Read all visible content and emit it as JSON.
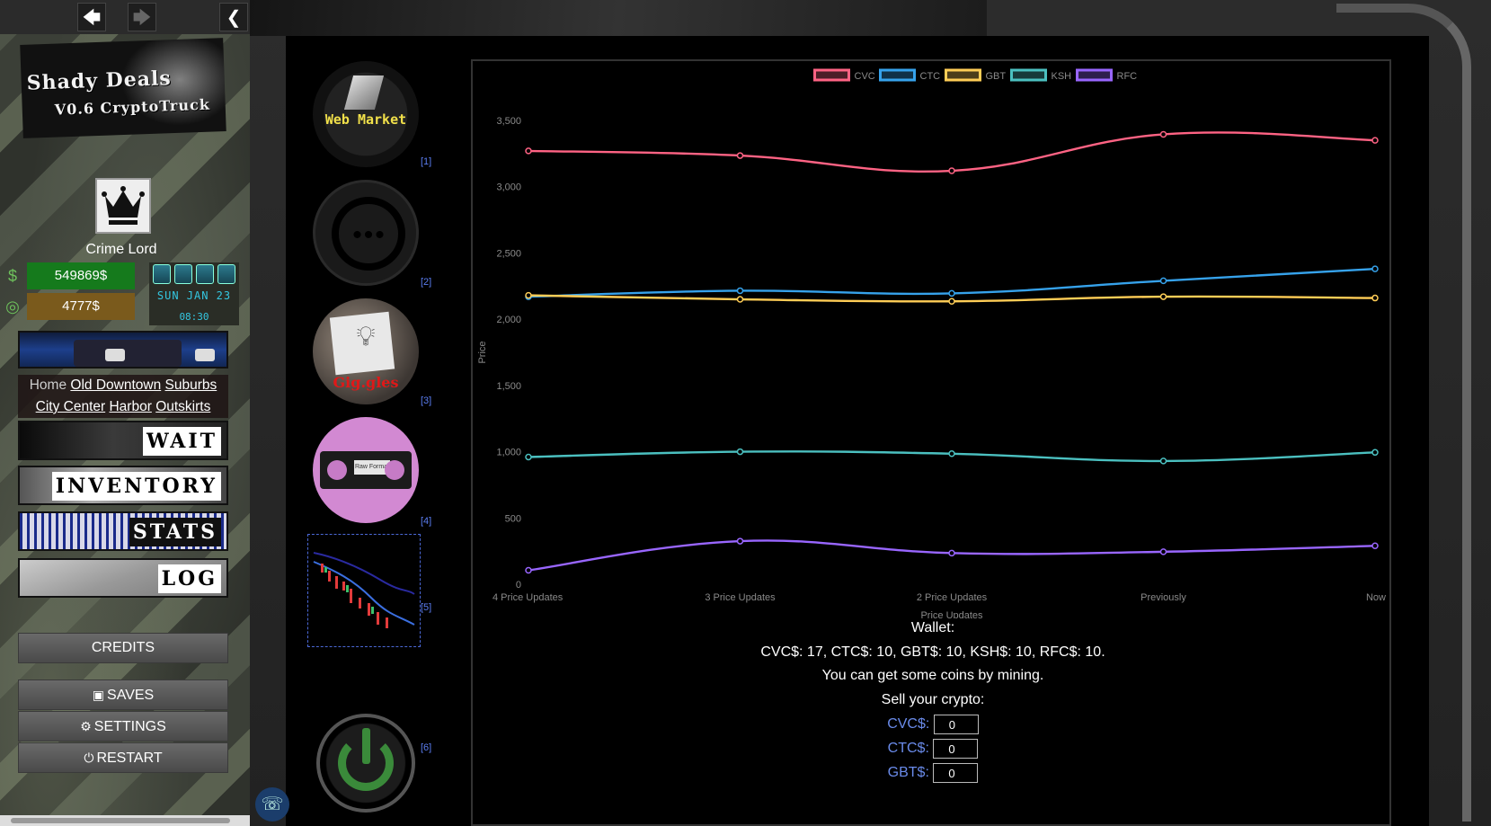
{
  "nav": {
    "back": "🡄",
    "forward": "🡆",
    "collapse": "❮"
  },
  "logo": {
    "line1": "Shady Deals",
    "line2": "V0.6 CryptoTruck"
  },
  "player": {
    "rank": "Crime Lord",
    "cash": "549869$",
    "bank": "4777$"
  },
  "clock": {
    "date": "SUN JAN 23",
    "time": "08:30"
  },
  "locations": {
    "current": "Home",
    "links": [
      "Old Downtown",
      "Suburbs",
      "City Center",
      "Harbor",
      "Outskirts"
    ]
  },
  "actions": {
    "wait": "WAIT",
    "inventory": "INVENTORY",
    "stats": "STATS",
    "log": "LOG"
  },
  "menu": {
    "credits": "CREDITS",
    "saves": "SAVES",
    "settings": "SETTINGS",
    "restart": "RESTART"
  },
  "apps": [
    {
      "name": "Web Market",
      "index": "[1]"
    },
    {
      "name": "Chat",
      "index": "[2]"
    },
    {
      "name": "Gig.gles",
      "index": "[3]"
    },
    {
      "name": "Raw Format",
      "index": "[4]"
    },
    {
      "name": "Crypto Chart",
      "index": "[5]"
    },
    {
      "name": "Power",
      "index": "[6]"
    }
  ],
  "chart_data": {
    "type": "line",
    "categories": [
      "4 Price Updates",
      "3 Price Updates",
      "2 Price Updates",
      "Previously",
      "Now"
    ],
    "series": [
      {
        "name": "CVC",
        "color": "#ff6384",
        "values": [
          3270,
          3235,
          3120,
          3395,
          3350
        ]
      },
      {
        "name": "CTC",
        "color": "#36a2eb",
        "values": [
          2170,
          2215,
          2195,
          2290,
          2380
        ]
      },
      {
        "name": "GBT",
        "color": "#ffcd56",
        "values": [
          2180,
          2150,
          2135,
          2170,
          2160
        ]
      },
      {
        "name": "KSH",
        "color": "#4bc0c0",
        "values": [
          960,
          1000,
          985,
          930,
          995
        ]
      },
      {
        "name": "RFC",
        "color": "#9966ff",
        "values": [
          105,
          325,
          235,
          245,
          290
        ]
      }
    ],
    "ylim": [
      0,
      3500
    ],
    "yticks": [
      "0",
      "500",
      "1,000",
      "1,500",
      "2,000",
      "2,500",
      "3,000",
      "3,500"
    ],
    "xlabel": "Price Updates",
    "ylabel": "Price",
    "legend": "top",
    "grid": false
  },
  "wallet": {
    "title": "Wallet:",
    "balances": "CVC$: 17, CTC$: 10, GBT$: 10, KSH$: 10, RFC$: 10.",
    "hint": "You can get some coins by mining.",
    "sell_title": "Sell your crypto:",
    "sell_rows": [
      {
        "label": "CVC$:",
        "value": "0"
      },
      {
        "label": "CTC$:",
        "value": "0"
      },
      {
        "label": "GBT$:",
        "value": "0"
      }
    ]
  }
}
